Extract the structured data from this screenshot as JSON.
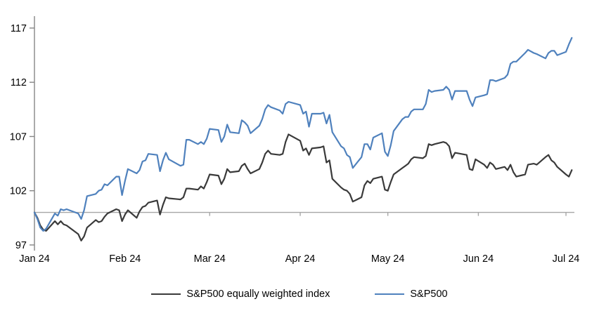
{
  "chart_data": {
    "type": "line",
    "title": "",
    "grid": "off",
    "legend_position": "bottom-center",
    "x_axis": {
      "tick_labels": [
        "Jan 24",
        "Feb 24",
        "Mar 24",
        "Apr 24",
        "May 24",
        "Jun 24",
        "Jul 24"
      ],
      "tick_positions_days": [
        0,
        31,
        60,
        91,
        121,
        152,
        182
      ]
    },
    "y_axis": {
      "tick_labels": [
        "97",
        "102",
        "107",
        "112",
        "117"
      ],
      "tick_values": [
        97,
        102,
        107,
        112,
        117
      ],
      "min": 97,
      "max": 117.5
    },
    "baseline_value": 100,
    "colors": {
      "background": "#ffffff",
      "axis": "#858585",
      "baseline": "#a6a6a6",
      "label_text": "#000000"
    },
    "dates": [
      "01-01",
      "01-02",
      "01-03",
      "01-04",
      "01-05",
      "01-08",
      "01-09",
      "01-10",
      "01-11",
      "01-12",
      "01-16",
      "01-17",
      "01-18",
      "01-19",
      "01-22",
      "01-23",
      "01-24",
      "01-25",
      "01-26",
      "01-29",
      "01-30",
      "01-31",
      "02-01",
      "02-02",
      "02-05",
      "02-06",
      "02-07",
      "02-08",
      "02-09",
      "02-12",
      "02-13",
      "02-14",
      "02-15",
      "02-16",
      "02-20",
      "02-21",
      "02-22",
      "02-23",
      "02-26",
      "02-27",
      "02-28",
      "02-29",
      "03-01",
      "03-04",
      "03-05",
      "03-06",
      "03-07",
      "03-08",
      "03-11",
      "03-12",
      "03-13",
      "03-14",
      "03-15",
      "03-18",
      "03-19",
      "03-20",
      "03-21",
      "03-22",
      "03-25",
      "03-26",
      "03-27",
      "03-28",
      "04-01",
      "04-02",
      "04-03",
      "04-04",
      "04-05",
      "04-08",
      "04-09",
      "04-10",
      "04-11",
      "04-12",
      "04-15",
      "04-16",
      "04-17",
      "04-18",
      "04-19",
      "04-22",
      "04-23",
      "04-24",
      "04-25",
      "04-26",
      "04-29",
      "04-30",
      "05-01",
      "05-02",
      "05-03",
      "05-06",
      "05-07",
      "05-08",
      "05-09",
      "05-10",
      "05-13",
      "05-14",
      "05-15",
      "05-16",
      "05-17",
      "05-20",
      "05-21",
      "05-22",
      "05-23",
      "05-24",
      "05-28",
      "05-29",
      "05-30",
      "05-31",
      "06-03",
      "06-04",
      "06-05",
      "06-06",
      "06-07",
      "06-10",
      "06-11",
      "06-12",
      "06-13",
      "06-14",
      "06-17",
      "06-18",
      "06-20",
      "06-21",
      "06-24",
      "06-25",
      "06-26",
      "06-27",
      "06-28",
      "07-01",
      "07-02",
      "07-03"
    ],
    "series": [
      {
        "name": "S&P500 equally weighted index",
        "color": "#3a3a3a",
        "values": [
          100,
          99.5,
          98.8,
          98.4,
          98.3,
          99.2,
          98.9,
          99.2,
          98.9,
          98.8,
          98.0,
          97.4,
          97.8,
          98.6,
          99.3,
          99.1,
          99.2,
          99.6,
          99.9,
          100.3,
          100.2,
          99.2,
          99.8,
          100.2,
          99.5,
          100.1,
          100.5,
          100.6,
          100.9,
          101.1,
          99.8,
          100.7,
          101.4,
          101.3,
          101.2,
          101.4,
          102.2,
          102.2,
          102.1,
          102.4,
          102.2,
          102.8,
          103.5,
          103.4,
          102.6,
          103.1,
          104.0,
          103.7,
          103.8,
          104.3,
          104.5,
          104.0,
          103.6,
          104.0,
          104.6,
          105.4,
          105.7,
          105.4,
          105.3,
          105.4,
          106.5,
          107.2,
          106.6,
          105.7,
          105.9,
          105.3,
          105.9,
          106.0,
          106.1,
          104.6,
          104.8,
          103.1,
          102.3,
          102.1,
          102.0,
          101.7,
          101.0,
          101.4,
          102.5,
          102.9,
          102.7,
          103.1,
          103.3,
          102.1,
          102.0,
          102.8,
          103.5,
          104.1,
          104.3,
          104.5,
          104.9,
          105.1,
          105.0,
          105.2,
          106.3,
          106.2,
          106.3,
          106.5,
          106.4,
          106.1,
          105.0,
          105.5,
          105.3,
          104.0,
          103.9,
          104.9,
          104.4,
          104.1,
          104.6,
          104.4,
          104.0,
          104.2,
          103.9,
          104.4,
          103.7,
          103.3,
          103.5,
          104.4,
          104.5,
          104.4,
          105.1,
          105.3,
          104.8,
          104.6,
          104.2,
          103.5,
          103.3,
          103.9
        ]
      },
      {
        "name": "S&P500",
        "color": "#4f81bd",
        "values": [
          100,
          99.4,
          98.6,
          98.3,
          98.5,
          99.9,
          99.7,
          100.3,
          100.2,
          100.3,
          99.9,
          99.4,
          100.2,
          101.5,
          101.7,
          102.0,
          102.1,
          102.6,
          102.5,
          103.3,
          103.3,
          101.6,
          102.9,
          104.0,
          103.6,
          103.9,
          104.7,
          104.8,
          105.4,
          105.3,
          103.8,
          104.8,
          105.5,
          104.9,
          104.3,
          104.4,
          106.7,
          106.7,
          106.3,
          106.5,
          106.3,
          106.8,
          107.7,
          107.6,
          106.5,
          107.0,
          108.1,
          107.4,
          107.3,
          108.5,
          108.3,
          108.0,
          107.3,
          108.0,
          108.6,
          109.5,
          109.9,
          109.7,
          109.4,
          109.1,
          110.0,
          110.2,
          109.9,
          109.1,
          109.3,
          107.9,
          109.1,
          109.1,
          109.2,
          108.2,
          109.0,
          107.4,
          106.1,
          105.9,
          105.3,
          105.1,
          104.1,
          105.1,
          106.3,
          106.3,
          105.8,
          106.9,
          107.3,
          105.6,
          105.2,
          106.2,
          107.5,
          108.6,
          108.8,
          108.8,
          109.3,
          109.5,
          109.5,
          110.0,
          111.3,
          111.1,
          111.2,
          111.3,
          111.6,
          111.3,
          110.4,
          111.2,
          111.2,
          110.4,
          109.8,
          110.6,
          110.8,
          110.9,
          112.2,
          112.2,
          112.1,
          112.4,
          112.7,
          113.7,
          113.9,
          113.9,
          114.7,
          115.0,
          114.7,
          114.6,
          114.2,
          114.7,
          114.9,
          114.9,
          114.5,
          114.8,
          115.5,
          116.1
        ]
      }
    ]
  }
}
